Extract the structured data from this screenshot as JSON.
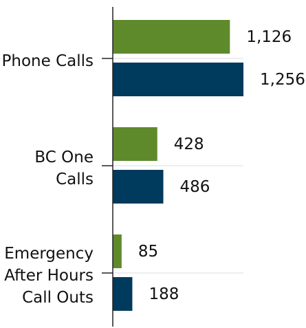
{
  "chart_data": {
    "type": "bar",
    "orientation": "horizontal",
    "categories": [
      "Phone Calls",
      "BC One Calls",
      "Emergency After Hours Call Outs"
    ],
    "series": [
      {
        "color": "#5f8a2c",
        "values": [
          1126,
          428,
          85
        ],
        "value_labels": [
          "1,126",
          "428",
          "85"
        ]
      },
      {
        "color": "#003a5c",
        "values": [
          1256,
          486,
          188
        ],
        "value_labels": [
          "1,256",
          "486",
          "188"
        ]
      }
    ],
    "xlim": [
      0,
      1256
    ]
  }
}
